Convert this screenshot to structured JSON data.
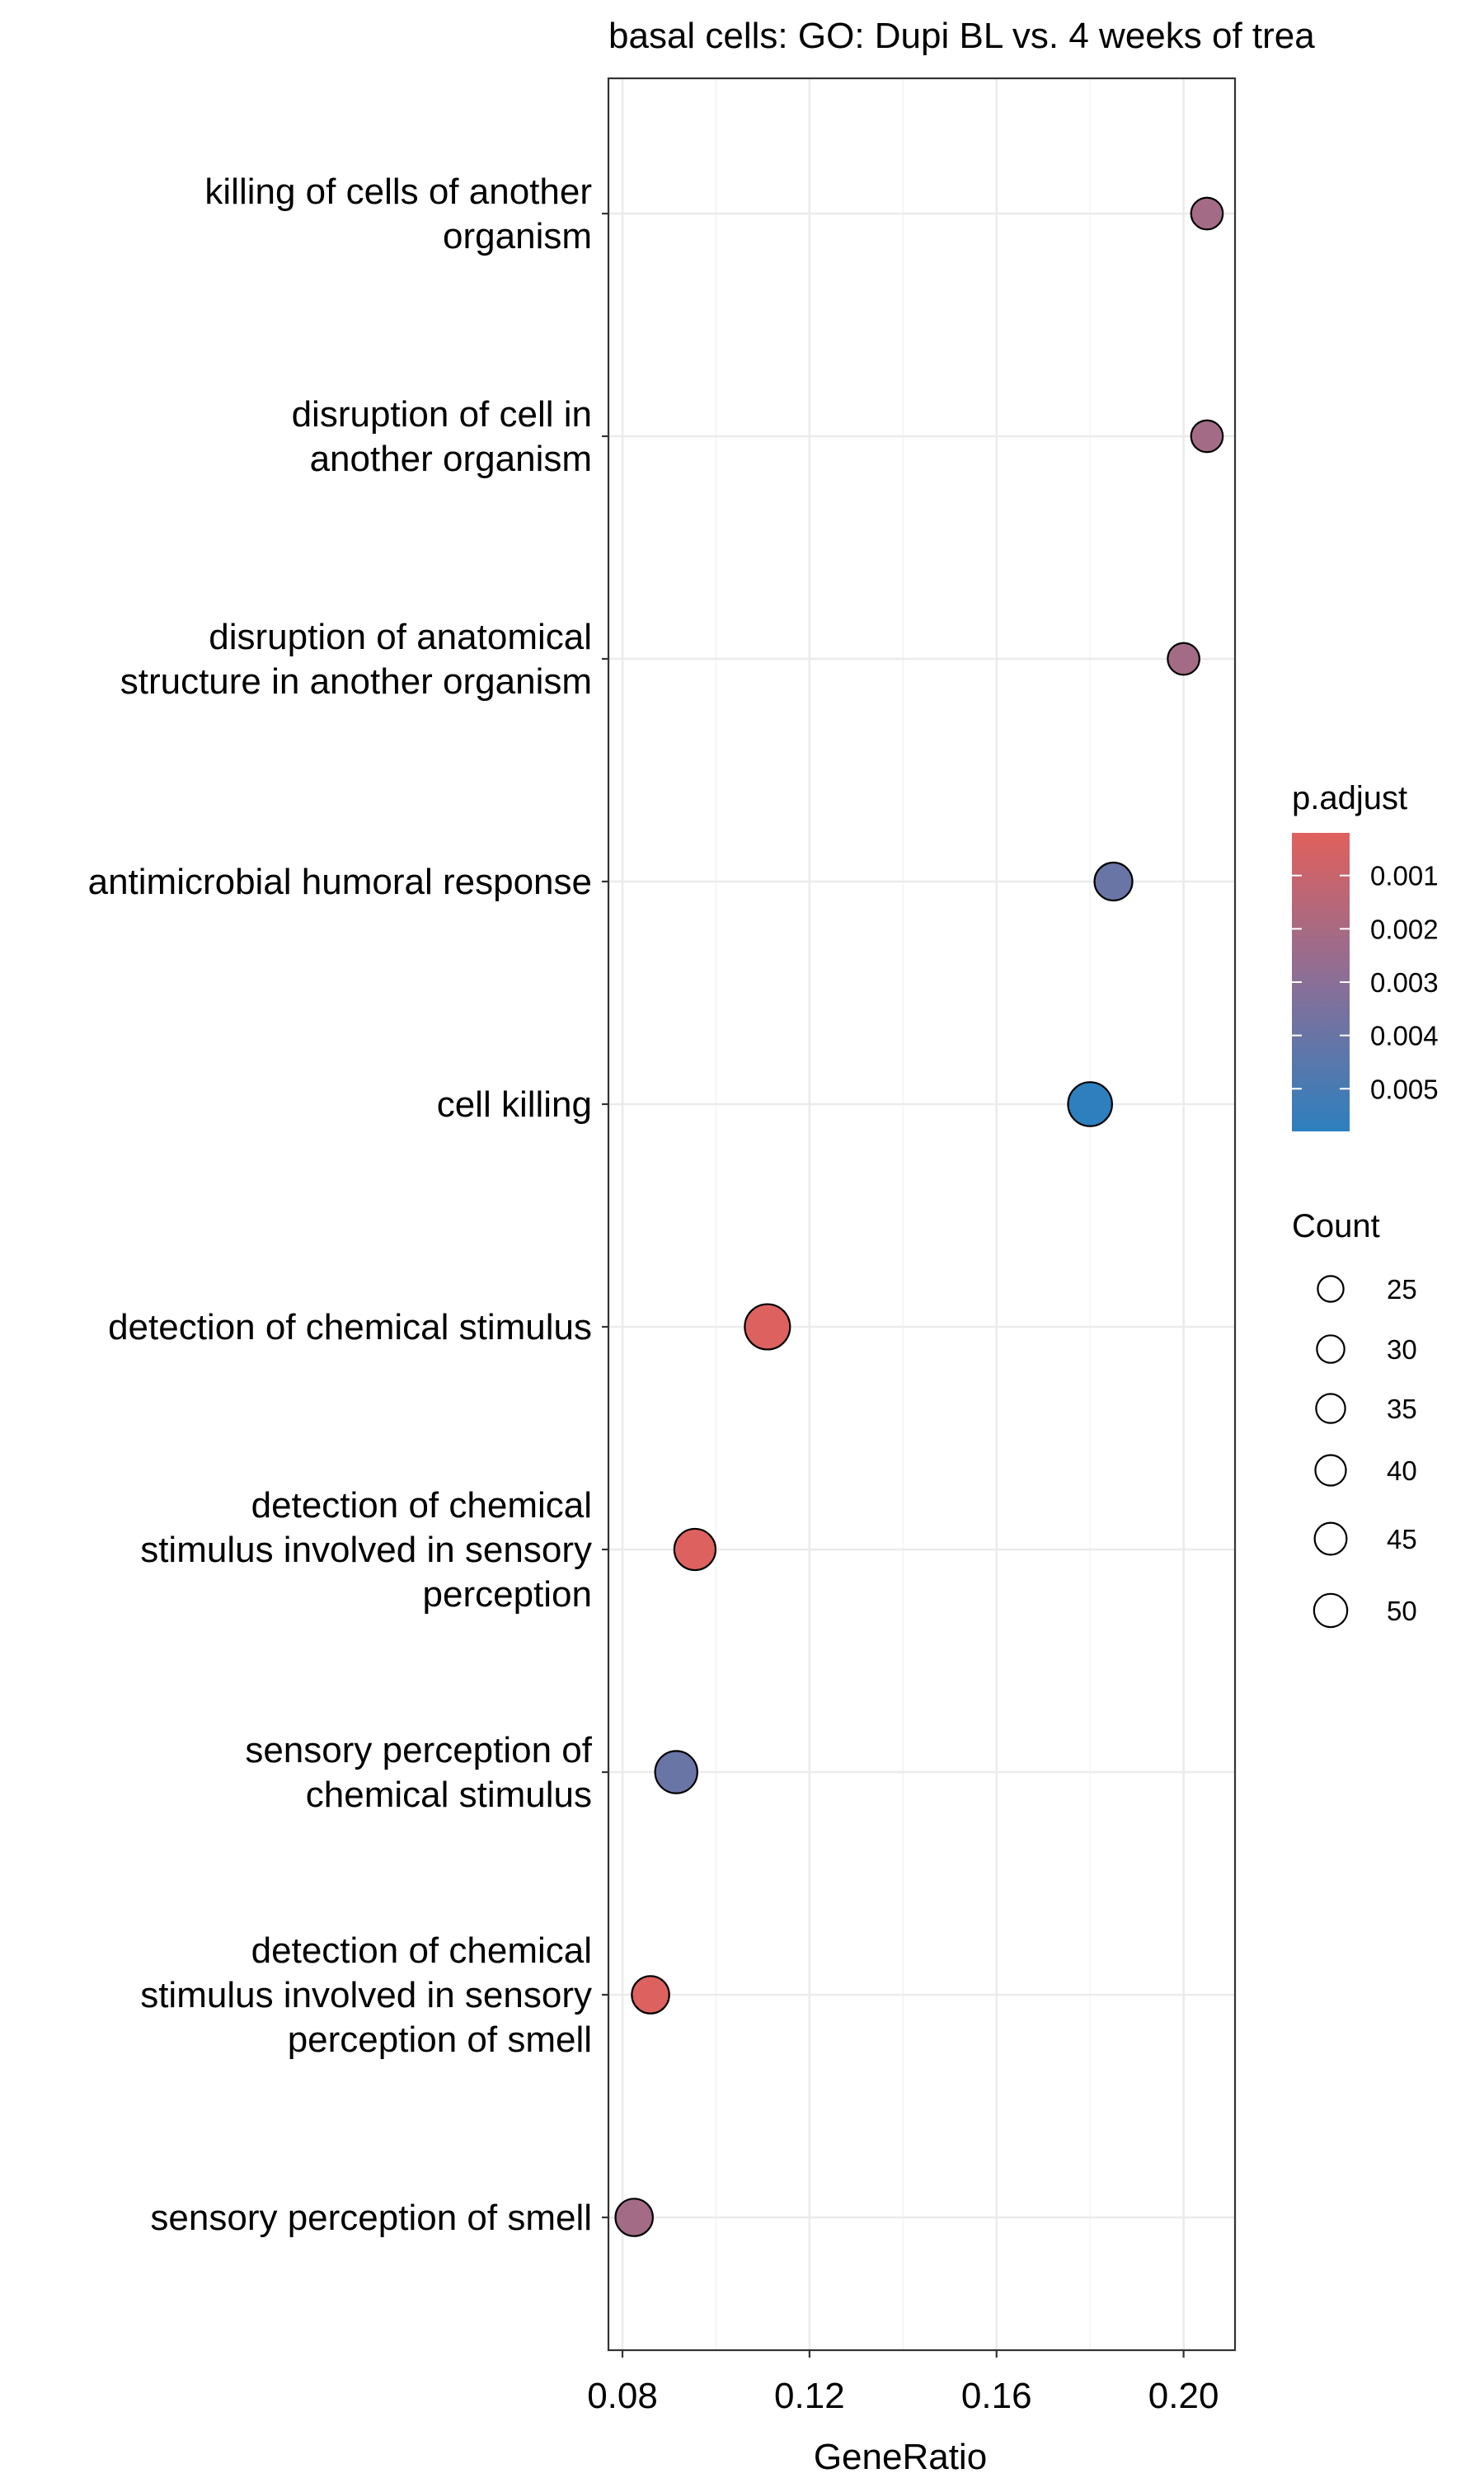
{
  "chart_data": {
    "type": "scatter",
    "title": "basal cells: GO: Dupi BL vs. 4 weeks of trea",
    "xlabel": "GeneRatio",
    "ylabel": "",
    "xlim": [
      0.077,
      0.211
    ],
    "x_ticks": [
      0.08,
      0.12,
      0.16,
      0.2
    ],
    "x_tick_labels": [
      "0.08",
      "0.12",
      "0.16",
      "0.20"
    ],
    "grid": true,
    "categories": [
      "killing of cells of another organism",
      "disruption of cell in another organism",
      "disruption of anatomical structure in another organism",
      "antimicrobial humoral response",
      "cell killing",
      "detection of chemical stimulus",
      "detection of chemical stimulus involved in sensory perception",
      "sensory perception of chemical stimulus",
      "detection of chemical stimulus involved in sensory perception of smell",
      "sensory perception of smell"
    ],
    "category_label_lines": [
      [
        "killing of cells of another",
        "organism"
      ],
      [
        "disruption of cell in",
        "another organism"
      ],
      [
        "disruption of anatomical",
        "structure in another organism"
      ],
      [
        "antimicrobial humoral response"
      ],
      [
        "cell killing"
      ],
      [
        "detection of chemical stimulus"
      ],
      [
        "detection of chemical",
        "stimulus involved in sensory",
        "perception"
      ],
      [
        "sensory perception of",
        "chemical stimulus"
      ],
      [
        "detection of chemical",
        "stimulus involved in sensory",
        "perception of smell"
      ],
      [
        "sensory perception of smell"
      ]
    ],
    "points": [
      {
        "x": 0.205,
        "count": 22,
        "p_adjust": 0.0022
      },
      {
        "x": 0.205,
        "count": 22,
        "p_adjust": 0.0022
      },
      {
        "x": 0.2,
        "count": 22,
        "p_adjust": 0.0022
      },
      {
        "x": 0.185,
        "count": 33,
        "p_adjust": 0.004
      },
      {
        "x": 0.18,
        "count": 46,
        "p_adjust": 0.0058
      },
      {
        "x": 0.111,
        "count": 49,
        "p_adjust": 0.0003
      },
      {
        "x": 0.0955,
        "count": 40,
        "p_adjust": 0.0003
      },
      {
        "x": 0.0915,
        "count": 42,
        "p_adjust": 0.004
      },
      {
        "x": 0.086,
        "count": 32,
        "p_adjust": 0.0003
      },
      {
        "x": 0.0825,
        "count": 32,
        "p_adjust": 0.0022
      }
    ],
    "legend_color": {
      "title": "p.adjust",
      "ticks": [
        0.001,
        0.002,
        0.003,
        0.004,
        0.005
      ],
      "tick_labels": [
        "0.001",
        "0.002",
        "0.003",
        "0.004",
        "0.005"
      ],
      "range": [
        0.0002,
        0.0058
      ],
      "low_color": "#E0605C",
      "high_color": "#2D7FBE",
      "mid_color": "#8A6F97"
    },
    "legend_size": {
      "title": "Count",
      "values": [
        25,
        30,
        35,
        40,
        45,
        50
      ],
      "labels": [
        "25",
        "30",
        "35",
        "40",
        "45",
        "50"
      ]
    }
  }
}
